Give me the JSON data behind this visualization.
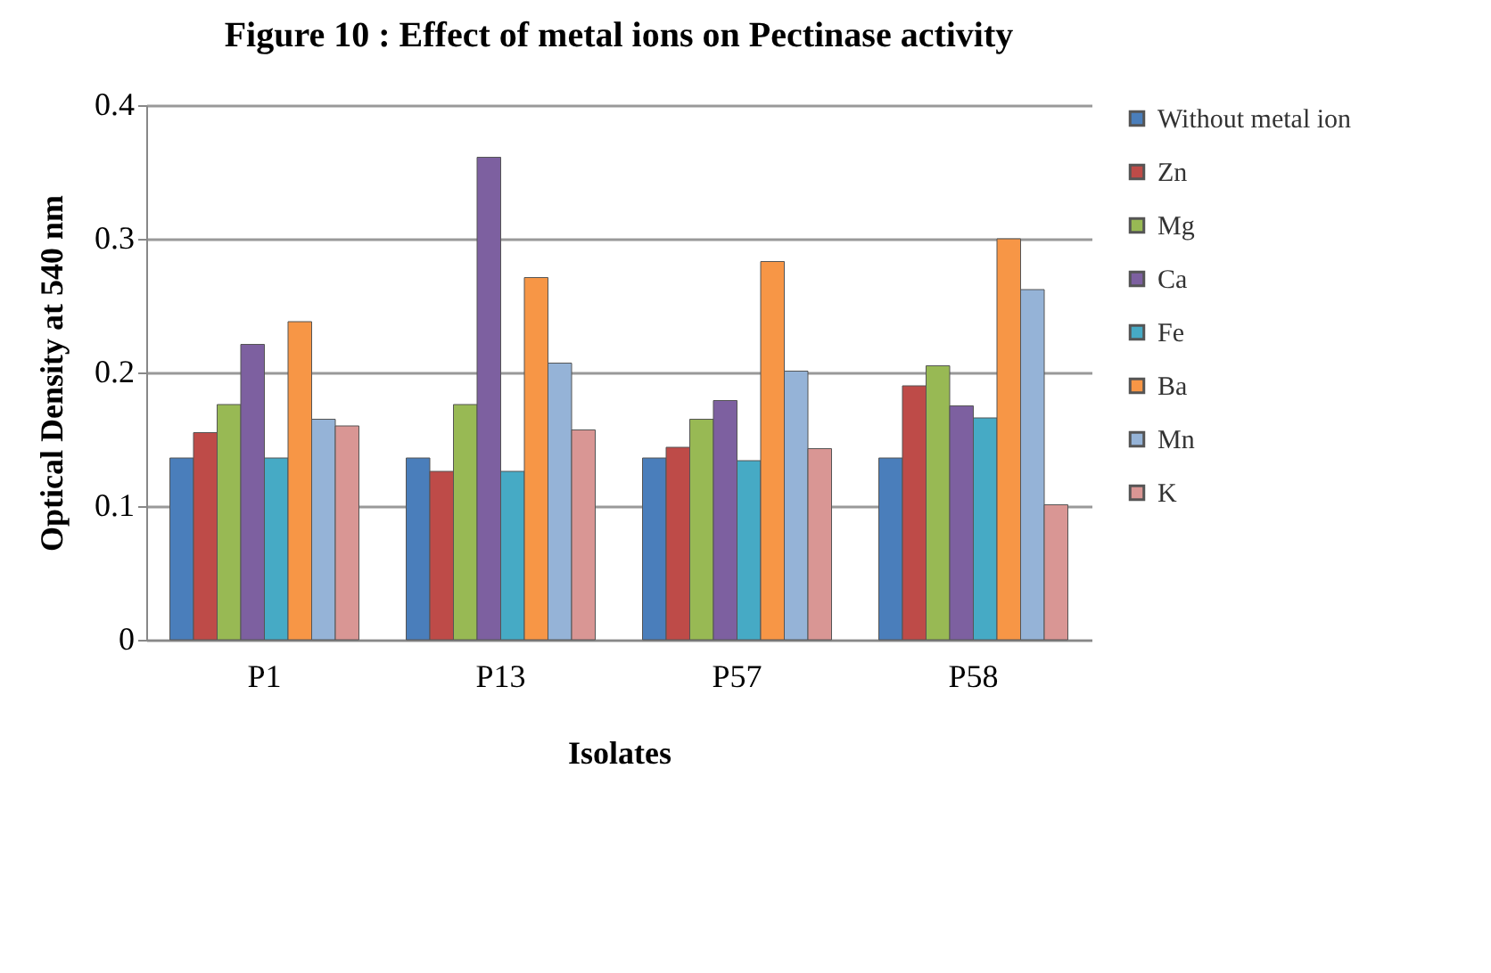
{
  "chart_data": {
    "type": "bar",
    "title": "Figure 10 :  Effect of metal ions on Pectinase activity",
    "xlabel": "Isolates",
    "ylabel": "Optical Density at 540 nm",
    "categories": [
      "P1",
      "P13",
      "P57",
      "P58"
    ],
    "series": [
      {
        "name": "Without metal ion",
        "color": "#4a7ebb",
        "values": [
          0.136,
          0.136,
          0.136,
          0.136
        ]
      },
      {
        "name": "Zn",
        "color": "#be4b48",
        "values": [
          0.155,
          0.126,
          0.144,
          0.19
        ]
      },
      {
        "name": "Mg",
        "color": "#98b954",
        "values": [
          0.176,
          0.176,
          0.165,
          0.205
        ]
      },
      {
        "name": "Ca",
        "color": "#7d60a0",
        "values": [
          0.221,
          0.361,
          0.179,
          0.175
        ]
      },
      {
        "name": "Fe",
        "color": "#46aac5",
        "values": [
          0.136,
          0.126,
          0.134,
          0.166
        ]
      },
      {
        "name": "Ba",
        "color": "#f79646",
        "values": [
          0.238,
          0.271,
          0.283,
          0.3
        ]
      },
      {
        "name": "Mn",
        "color": "#95b3d7",
        "values": [
          0.165,
          0.207,
          0.201,
          0.262
        ]
      },
      {
        "name": "K",
        "color": "#d99694",
        "values": [
          0.16,
          0.157,
          0.143,
          0.101
        ]
      }
    ],
    "ylim": [
      0,
      0.4
    ],
    "yticks": [
      0,
      0.1,
      0.2,
      0.3,
      0.4
    ],
    "grid": "y",
    "legend": "right"
  }
}
